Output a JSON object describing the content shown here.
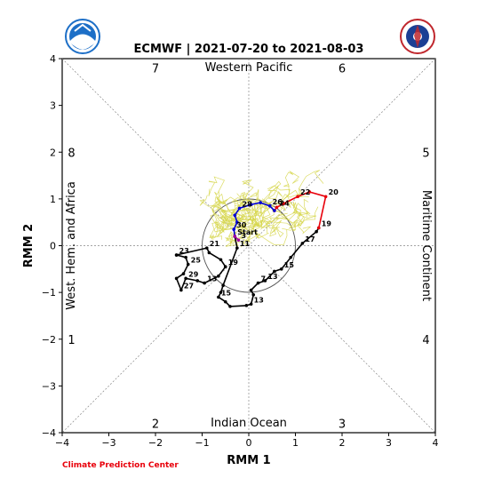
{
  "chart_data": {
    "type": "line",
    "title": "ECMWF | 2021-07-20 to 2021-08-03",
    "xlabel": "RMM 1",
    "ylabel": "RMM 2",
    "xlim": [
      -4,
      4
    ],
    "ylim": [
      -4,
      4
    ],
    "xticks": [
      -4,
      -3,
      -2,
      -1,
      0,
      1,
      2,
      3,
      4
    ],
    "yticks": [
      -4,
      -3,
      -2,
      -1,
      0,
      1,
      2,
      3,
      4
    ],
    "unit_circle_radius": 1,
    "regions": [
      {
        "text": "Western Pacific",
        "pos": "top"
      },
      {
        "text": "Indian Ocean",
        "pos": "bottom"
      },
      {
        "text": "West. Hem. and Africa",
        "pos": "left"
      },
      {
        "text": "Maritime Continent",
        "pos": "right"
      }
    ],
    "phases": [
      {
        "n": "7",
        "x": -2,
        "y": 3.8
      },
      {
        "n": "6",
        "x": 2,
        "y": 3.8
      },
      {
        "n": "8",
        "x": -3.8,
        "y": 2
      },
      {
        "n": "5",
        "x": 3.8,
        "y": 2
      },
      {
        "n": "1",
        "x": -3.8,
        "y": -2
      },
      {
        "n": "4",
        "x": 3.8,
        "y": -2
      },
      {
        "n": "2",
        "x": -2,
        "y": -3.8
      },
      {
        "n": "3",
        "x": 2,
        "y": -3.8
      }
    ],
    "credit": "Climate Prediction Center",
    "series": [
      {
        "color": "#000000",
        "points": [
          {
            "x": -1.55,
            "y": -0.2,
            "label": "23"
          },
          {
            "x": -1.35,
            "y": -0.25
          },
          {
            "x": -1.3,
            "y": -0.4,
            "label": "25"
          },
          {
            "x": -1.4,
            "y": -0.6
          },
          {
            "x": -1.55,
            "y": -0.7
          },
          {
            "x": -1.45,
            "y": -0.95,
            "label": "27"
          },
          {
            "x": -1.35,
            "y": -0.7,
            "label": "29"
          },
          {
            "x": -1.1,
            "y": -0.75
          },
          {
            "x": -0.95,
            "y": -0.8,
            "label": "13"
          },
          {
            "x": -0.65,
            "y": -0.65
          },
          {
            "x": -0.5,
            "y": -0.45,
            "label": "19"
          },
          {
            "x": -0.6,
            "y": -0.3
          },
          {
            "x": -0.85,
            "y": -0.15
          },
          {
            "x": -0.9,
            "y": -0.05,
            "label": "21"
          },
          {
            "x": -1.55,
            "y": -0.2
          }
        ]
      },
      {
        "color": "#000000",
        "points": [
          {
            "x": -0.3,
            "y": 0.2
          },
          {
            "x": -0.25,
            "y": -0.05,
            "label": "11"
          },
          {
            "x": -0.55,
            "y": -0.85
          },
          {
            "x": -0.6,
            "y": -1.0
          },
          {
            "x": -0.65,
            "y": -1.1,
            "label": "15"
          },
          {
            "x": -0.5,
            "y": -1.2
          },
          {
            "x": -0.4,
            "y": -1.3
          },
          {
            "x": -0.05,
            "y": -1.28
          },
          {
            "x": 0.05,
            "y": -1.25,
            "label": "13"
          },
          {
            "x": 0.1,
            "y": -1.05
          },
          {
            "x": 0.05,
            "y": -0.95
          },
          {
            "x": 0.2,
            "y": -0.8,
            "label": "7"
          },
          {
            "x": 0.35,
            "y": -0.75,
            "label": "13"
          },
          {
            "x": 0.55,
            "y": -0.55
          },
          {
            "x": 0.7,
            "y": -0.5,
            "label": "15"
          },
          {
            "x": 0.9,
            "y": -0.25
          },
          {
            "x": 1.15,
            "y": 0.05,
            "label": "17"
          },
          {
            "x": 1.45,
            "y": 0.3
          },
          {
            "x": 1.5,
            "y": 0.38,
            "label": "19"
          }
        ]
      },
      {
        "color": "#e8000b",
        "points": [
          {
            "x": 1.5,
            "y": 0.38
          },
          {
            "x": 1.65,
            "y": 1.05,
            "label": "20"
          },
          {
            "x": 1.3,
            "y": 1.15
          },
          {
            "x": 1.05,
            "y": 1.05,
            "label": "22"
          },
          {
            "x": 0.75,
            "y": 0.9
          },
          {
            "x": 0.6,
            "y": 0.82,
            "label": "24"
          },
          {
            "x": 0.55,
            "y": 0.75
          }
        ]
      },
      {
        "color": "#0000d6",
        "points": [
          {
            "x": 0.55,
            "y": 0.75
          },
          {
            "x": 0.45,
            "y": 0.85,
            "label": "26"
          },
          {
            "x": 0.25,
            "y": 0.92
          },
          {
            "x": 0.05,
            "y": 0.88
          },
          {
            "x": -0.2,
            "y": 0.8,
            "label": "28"
          },
          {
            "x": -0.3,
            "y": 0.65
          },
          {
            "x": -0.25,
            "y": 0.5
          },
          {
            "x": -0.32,
            "y": 0.35,
            "label": "30"
          },
          {
            "x": -0.3,
            "y": 0.2
          }
        ]
      },
      {
        "color": "#a000a0",
        "points": [
          {
            "x": -0.3,
            "y": 0.2,
            "label": "Start"
          },
          {
            "x": -0.22,
            "y": 0.12,
            "label": "3"
          }
        ]
      }
    ],
    "ensemble_color": "#d6d64a"
  }
}
